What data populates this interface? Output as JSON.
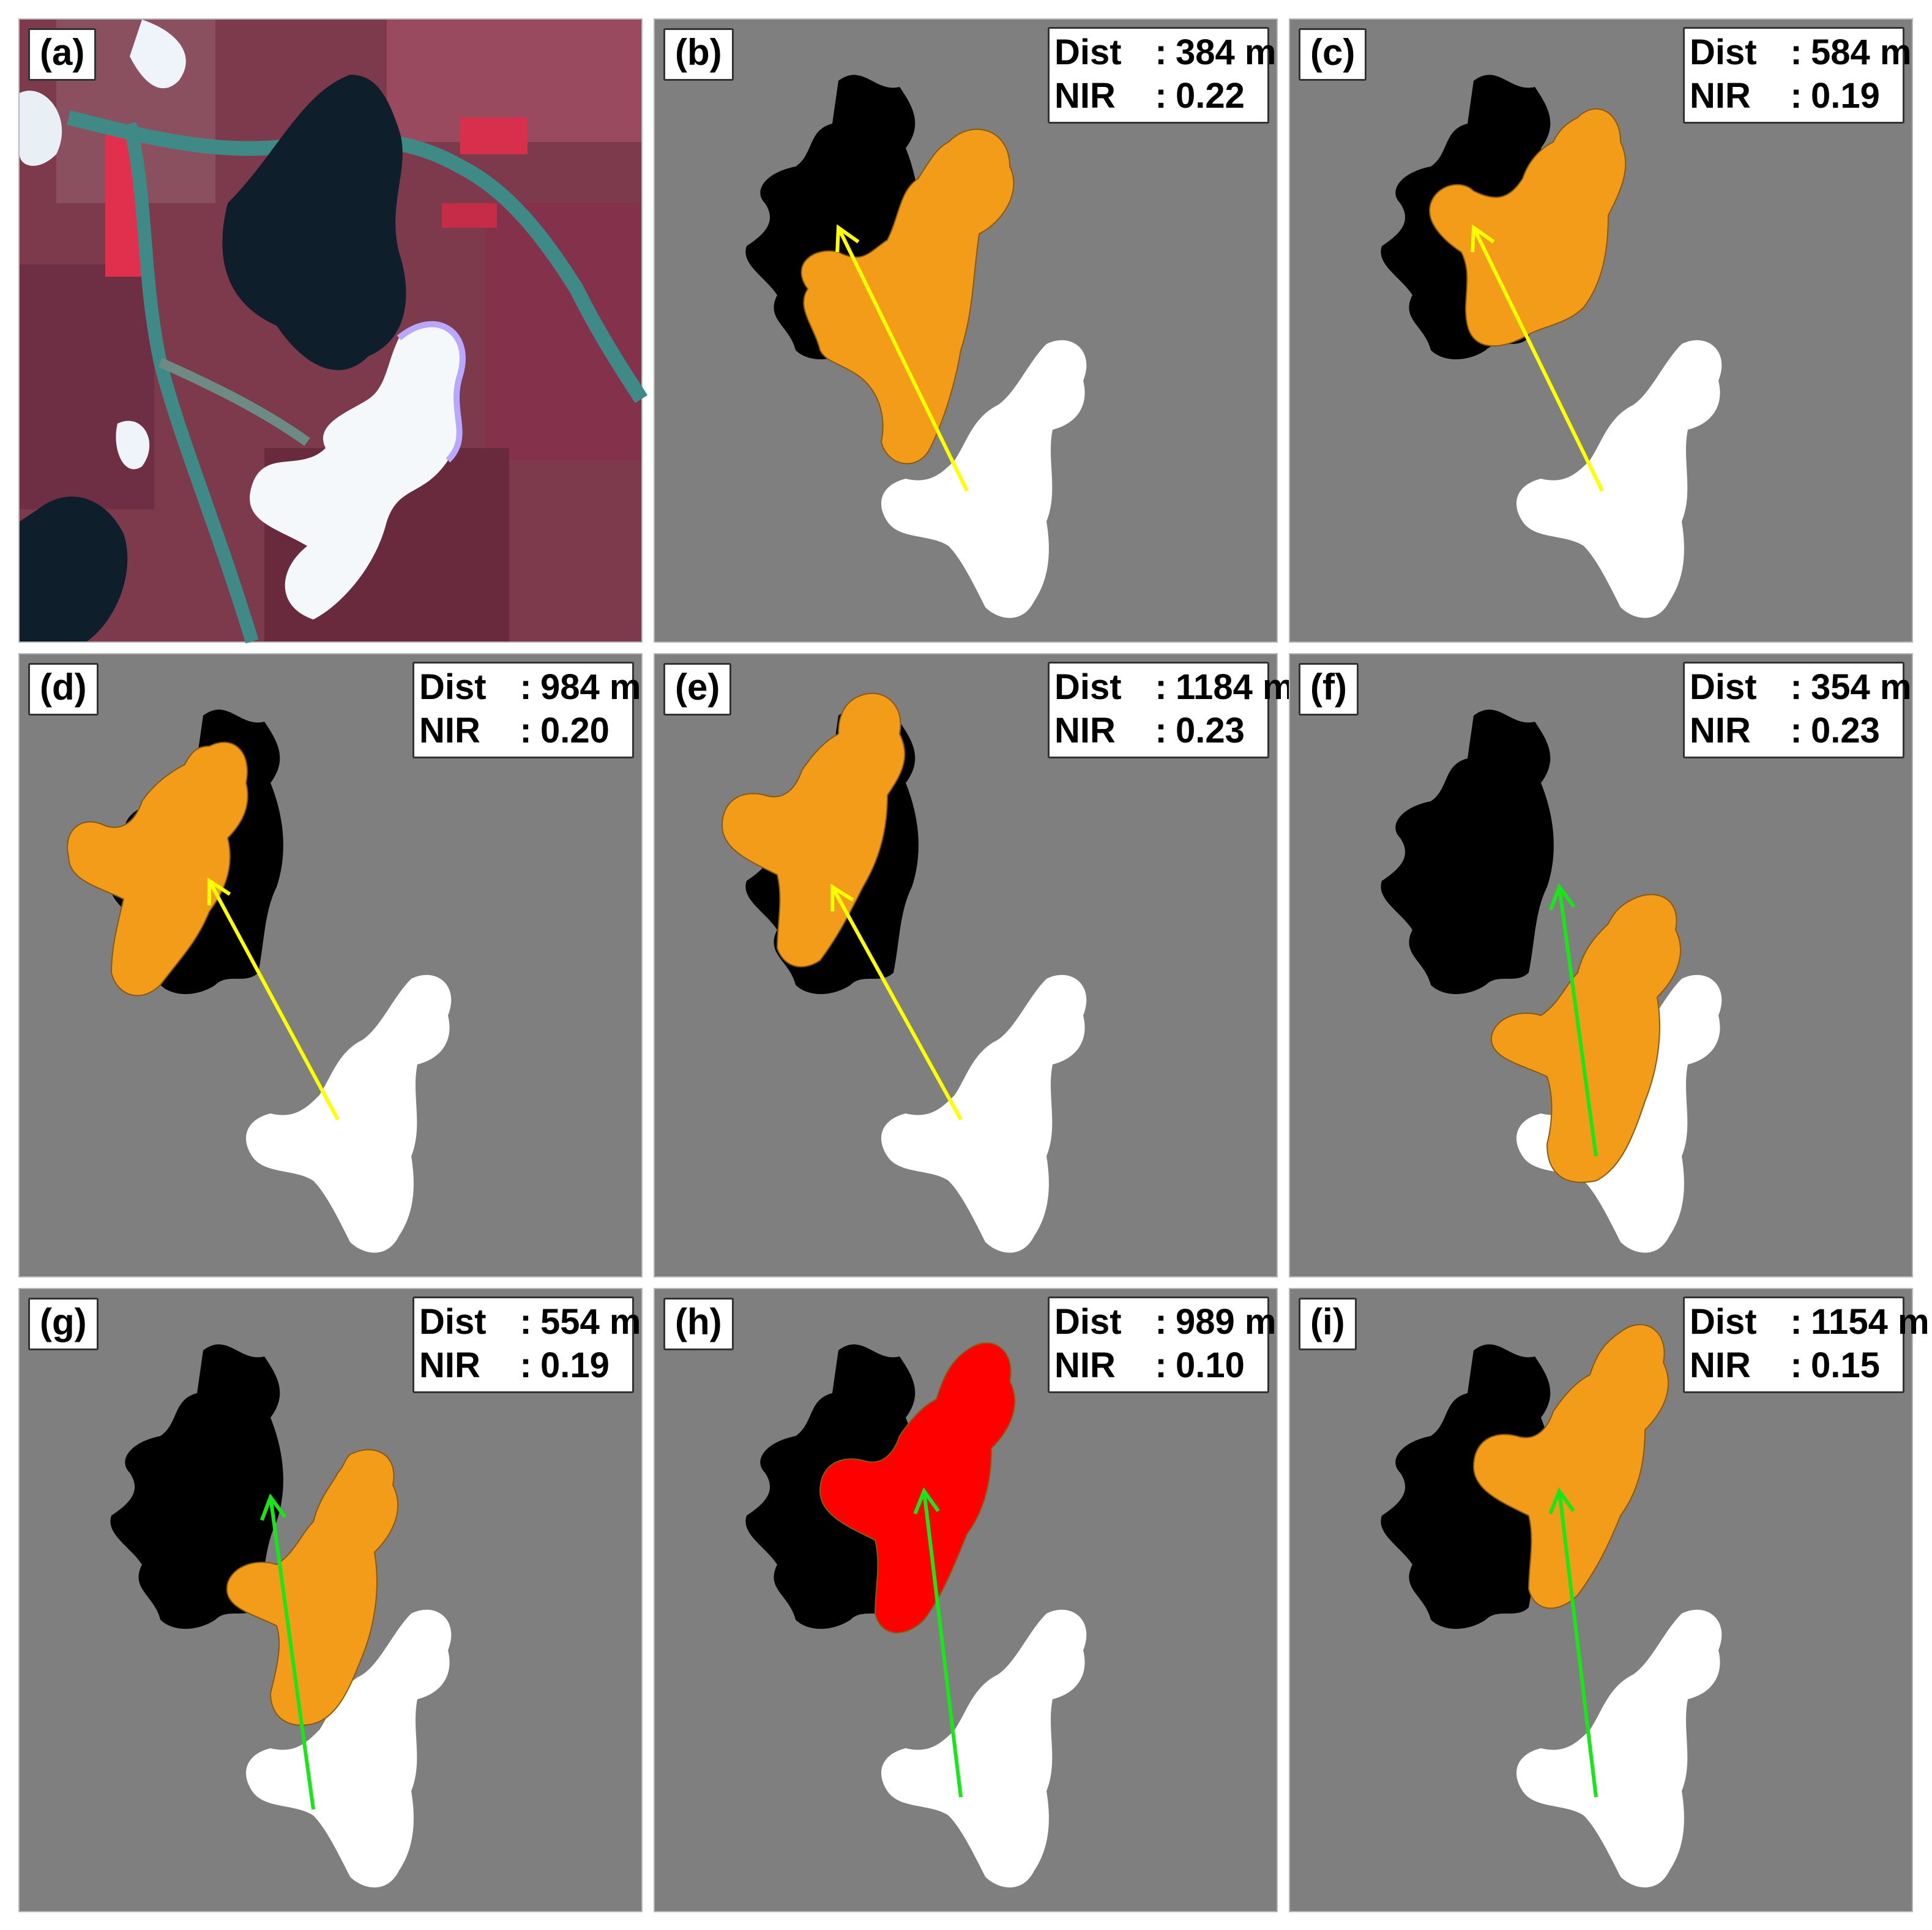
{
  "colors": {
    "background": "#7f7f7f",
    "cloud_shadow": "#000000",
    "cloud": "#ffffff",
    "candidate_shadow": "#f39c1a",
    "matched_shadow": "#ff0000",
    "arrow_yellow": "#ffff00",
    "arrow_green": "#19e619"
  },
  "panels": [
    {
      "id": "a",
      "label": "(a)",
      "type": "satellite-image"
    },
    {
      "id": "b",
      "label": "(b)",
      "type": "shadow-match",
      "dist_label": "Dist",
      "dist_value": "384 m",
      "nir_label": "NIR",
      "nir_value": "0.22",
      "arrow_color": "yellow",
      "fill": "orange",
      "dx": 0,
      "dy": 0
    },
    {
      "id": "c",
      "label": "(c)",
      "type": "shadow-match",
      "dist_label": "Dist",
      "dist_value": "584 m",
      "nir_label": "NIR",
      "nir_value": "0.19",
      "arrow_color": "yellow",
      "fill": "orange",
      "dx": 0,
      "dy": 0
    },
    {
      "id": "d",
      "label": "(d)",
      "type": "shadow-match",
      "dist_label": "Dist",
      "dist_value": "984 m",
      "nir_label": "NIR",
      "nir_value": "0.20",
      "arrow_color": "yellow",
      "fill": "orange",
      "dx": 0,
      "dy": 0
    },
    {
      "id": "e",
      "label": "(e)",
      "type": "shadow-match",
      "dist_label": "Dist",
      "dist_value": "1184 m",
      "nir_label": "NIR",
      "nir_value": "0.23",
      "arrow_color": "yellow",
      "fill": "orange",
      "dx": 0,
      "dy": 0
    },
    {
      "id": "f",
      "label": "(f)",
      "type": "shadow-match",
      "dist_label": "Dist",
      "dist_value": "354 m",
      "nir_label": "NIR",
      "nir_value": "0.23",
      "arrow_color": "green",
      "fill": "orange",
      "dx": 0,
      "dy": 0
    },
    {
      "id": "g",
      "label": "(g)",
      "type": "shadow-match",
      "dist_label": "Dist",
      "dist_value": "554 m",
      "nir_label": "NIR",
      "nir_value": "0.19",
      "arrow_color": "green",
      "fill": "orange",
      "dx": 0,
      "dy": 0
    },
    {
      "id": "h",
      "label": "(h)",
      "type": "shadow-match",
      "dist_label": "Dist",
      "dist_value": "989 m",
      "nir_label": "NIR",
      "nir_value": "0.10",
      "arrow_color": "green",
      "fill": "red",
      "dx": 0,
      "dy": 0
    },
    {
      "id": "i",
      "label": "(i)",
      "type": "shadow-match",
      "dist_label": "Dist",
      "dist_value": "1154 m",
      "nir_label": "NIR",
      "nir_value": "0.15",
      "arrow_color": "green",
      "fill": "orange",
      "dx": 0,
      "dy": 0
    }
  ]
}
